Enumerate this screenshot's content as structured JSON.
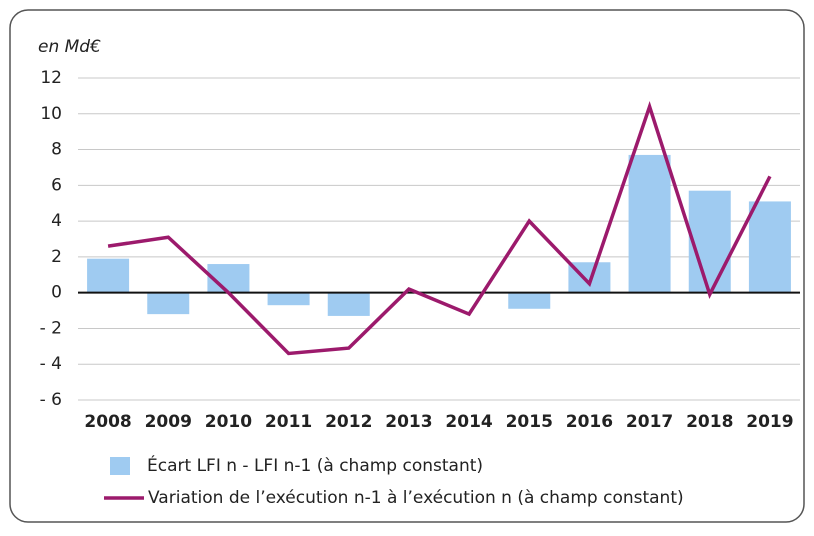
{
  "chart_data": {
    "type": "bar_line",
    "y_label": "en Md€",
    "categories": [
      "2008",
      "2009",
      "2010",
      "2011",
      "2012",
      "2013",
      "2014",
      "2015",
      "2016",
      "2017",
      "2018",
      "2019"
    ],
    "series": [
      {
        "name": "Écart LFI n - LFI n-1 (à champ constant)",
        "type": "bar",
        "color": "#9fcbf1",
        "values": [
          1.9,
          -1.2,
          1.6,
          -0.7,
          -1.3,
          0,
          0,
          -0.9,
          1.7,
          7.7,
          5.7,
          5.1
        ]
      },
      {
        "name": "Variation de l’exécution n-1 à l’exécution n (à champ constant)",
        "type": "line",
        "color": "#9c1a6c",
        "values": [
          2.6,
          3.1,
          0,
          -3.4,
          -3.1,
          0.2,
          -1.2,
          4.0,
          0.5,
          10.4,
          -0.1,
          6.5
        ]
      }
    ],
    "ylim": [
      -6,
      12
    ],
    "yticks": [
      {
        "value": -6,
        "label": "- 6"
      },
      {
        "value": -4,
        "label": "- 4"
      },
      {
        "value": -2,
        "label": "- 2"
      },
      0,
      2,
      4,
      6,
      8,
      10,
      12
    ],
    "grid": true,
    "legend": "bottom"
  }
}
